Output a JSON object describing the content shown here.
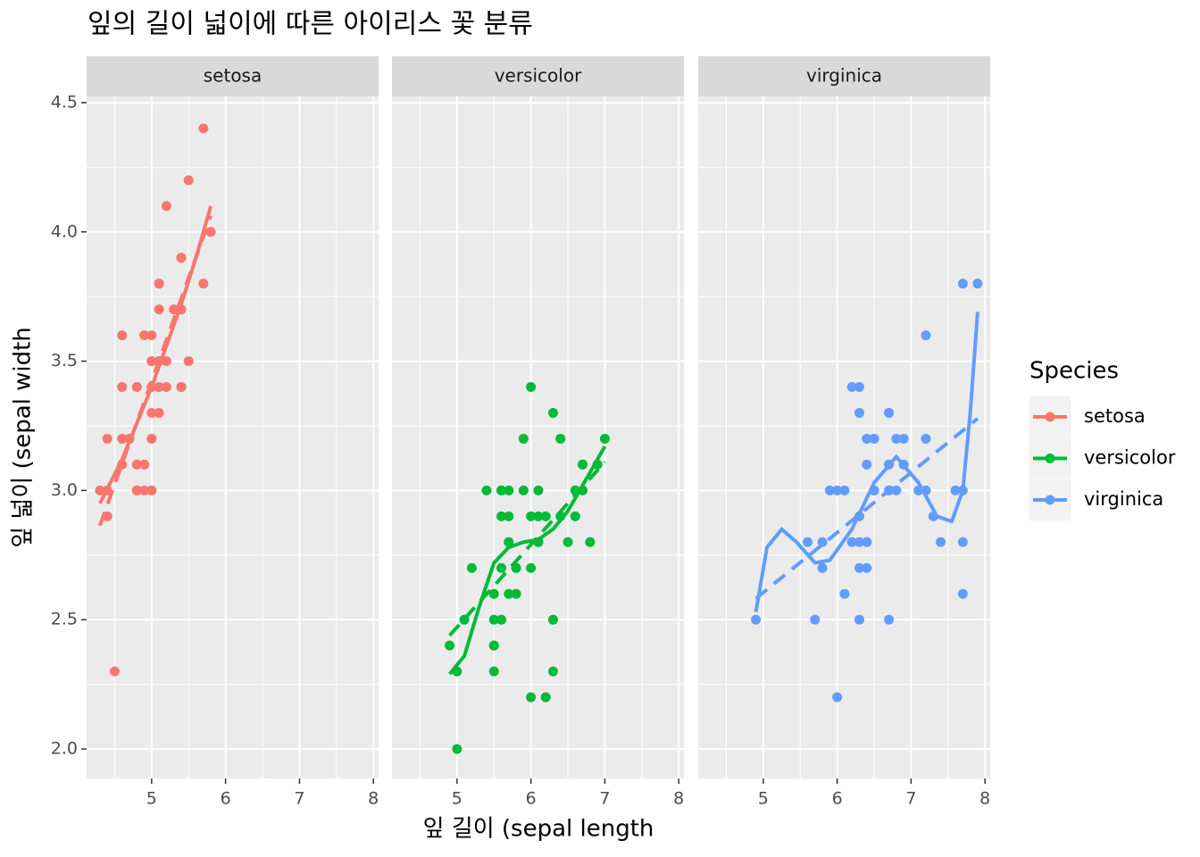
{
  "chart_data": {
    "type": "scatter",
    "title": "잎의 길이 넓이에 따른 아이리스 꽃 분류",
    "x_label": "잎 길이 (sepal length",
    "y_label": "잎 넓이 (sepal width",
    "legend_title": "Species",
    "xlim": [
      4.12,
      8.07
    ],
    "ylim": [
      1.886,
      4.524
    ],
    "xticks": [
      5,
      6,
      7,
      8
    ],
    "yticks": [
      {
        "value": 2,
        "label": "2.0"
      },
      {
        "value": 2.5,
        "label": "2.5"
      },
      {
        "value": 3,
        "label": "3.0"
      },
      {
        "value": 3.5,
        "label": "3.5"
      },
      {
        "value": 4,
        "label": "4.0"
      },
      {
        "value": 4.5,
        "label": "4.5"
      }
    ],
    "grid": true,
    "series": [
      {
        "name": "setosa",
        "color": "#f8766d",
        "x": [
          5.1,
          4.9,
          4.7,
          4.6,
          5.0,
          5.4,
          4.6,
          5.0,
          4.4,
          4.9,
          5.4,
          4.8,
          4.8,
          4.3,
          5.8,
          5.7,
          5.4,
          5.1,
          5.7,
          5.1,
          5.4,
          5.1,
          4.6,
          5.1,
          4.8,
          5.0,
          5.0,
          5.2,
          5.2,
          4.7,
          4.8,
          5.4,
          5.2,
          5.5,
          4.9,
          5.0,
          5.5,
          4.9,
          4.4,
          5.1,
          5.0,
          4.5,
          4.4,
          5.0,
          5.1,
          4.8,
          5.1,
          4.6,
          5.3,
          5.0
        ],
        "values": [
          3.5,
          3.0,
          3.2,
          3.1,
          3.6,
          3.9,
          3.4,
          3.4,
          2.9,
          3.1,
          3.7,
          3.4,
          3.0,
          3.0,
          4.0,
          4.4,
          3.9,
          3.5,
          3.8,
          3.8,
          3.4,
          3.7,
          3.6,
          3.3,
          3.4,
          3.0,
          3.4,
          3.5,
          3.4,
          3.2,
          3.1,
          3.4,
          4.1,
          4.2,
          3.1,
          3.2,
          3.5,
          3.6,
          3.0,
          3.4,
          3.5,
          2.3,
          3.2,
          3.5,
          3.8,
          3.0,
          3.8,
          3.2,
          3.7,
          3.3
        ],
        "smooth_x": [
          4.3,
          4.6,
          5.0,
          5.4,
          5.6,
          5.8
        ],
        "smooth_y": [
          2.95,
          3.12,
          3.4,
          3.72,
          3.9,
          4.1
        ],
        "fit_x": [
          4.3,
          5.8
        ],
        "fit_y": [
          2.864,
          4.062
        ]
      },
      {
        "name": "versicolor",
        "color": "#00ba38",
        "x": [
          7.0,
          6.4,
          6.9,
          5.5,
          6.5,
          5.7,
          6.3,
          4.9,
          6.6,
          5.2,
          5.0,
          5.9,
          6.0,
          6.1,
          5.6,
          6.7,
          5.6,
          5.8,
          6.2,
          5.6,
          5.9,
          6.1,
          6.3,
          6.1,
          6.4,
          6.6,
          6.8,
          6.7,
          6.0,
          5.7,
          5.5,
          5.5,
          5.8,
          6.0,
          5.4,
          6.0,
          6.7,
          6.3,
          5.6,
          5.5,
          5.5,
          6.1,
          5.8,
          5.0,
          5.6,
          5.7,
          5.7,
          6.2,
          5.1,
          5.7
        ],
        "values": [
          3.2,
          3.2,
          3.1,
          2.3,
          2.8,
          2.8,
          3.3,
          2.4,
          2.9,
          2.7,
          2.0,
          3.0,
          2.2,
          2.9,
          2.9,
          3.1,
          3.0,
          2.7,
          2.2,
          2.5,
          3.2,
          2.8,
          2.5,
          2.8,
          2.9,
          3.0,
          2.8,
          3.0,
          2.9,
          2.6,
          2.4,
          2.4,
          2.7,
          2.7,
          3.0,
          3.4,
          3.1,
          2.3,
          3.0,
          2.5,
          2.6,
          3.0,
          2.6,
          2.3,
          2.7,
          3.0,
          2.9,
          2.9,
          2.5,
          2.8
        ],
        "smooth_x": [
          4.9,
          5.1,
          5.3,
          5.5,
          5.7,
          5.9,
          6.1,
          6.3,
          6.5,
          6.7,
          7.0
        ],
        "smooth_y": [
          2.29,
          2.36,
          2.55,
          2.72,
          2.78,
          2.8,
          2.81,
          2.85,
          2.92,
          3.02,
          3.17
        ],
        "fit_x": [
          4.9,
          7.0
        ],
        "fit_y": [
          2.439,
          3.11
        ]
      },
      {
        "name": "virginica",
        "color": "#619cff",
        "x": [
          6.3,
          5.8,
          7.1,
          6.3,
          6.5,
          7.6,
          4.9,
          7.3,
          6.7,
          7.2,
          6.5,
          6.4,
          6.8,
          5.7,
          5.8,
          6.4,
          6.5,
          7.7,
          7.7,
          6.0,
          6.9,
          5.6,
          7.7,
          6.3,
          6.7,
          7.2,
          6.2,
          6.1,
          6.4,
          7.2,
          7.4,
          7.9,
          6.4,
          6.3,
          6.1,
          7.7,
          6.3,
          6.4,
          6.0,
          6.9,
          6.7,
          6.9,
          5.8,
          6.8,
          6.7,
          6.7,
          6.3,
          6.5,
          6.2,
          5.9
        ],
        "values": [
          3.3,
          2.7,
          3.0,
          2.9,
          3.0,
          3.0,
          2.5,
          2.9,
          2.5,
          3.6,
          3.2,
          2.7,
          3.0,
          2.5,
          2.8,
          3.2,
          3.0,
          3.8,
          2.6,
          2.2,
          3.2,
          2.8,
          2.8,
          2.7,
          3.3,
          3.2,
          2.8,
          3.0,
          2.8,
          3.0,
          2.8,
          3.8,
          2.8,
          2.8,
          2.6,
          3.0,
          3.4,
          3.1,
          3.0,
          3.1,
          3.1,
          3.1,
          2.7,
          3.2,
          3.3,
          3.0,
          2.5,
          3.0,
          3.4,
          3.0
        ],
        "smooth_x": [
          4.9,
          5.05,
          5.25,
          5.45,
          5.7,
          5.9,
          6.2,
          6.5,
          6.8,
          7.1,
          7.35,
          7.55,
          7.7,
          7.8,
          7.9
        ],
        "smooth_y": [
          2.53,
          2.78,
          2.85,
          2.8,
          2.72,
          2.73,
          2.85,
          3.03,
          3.13,
          3.03,
          2.9,
          2.88,
          3.0,
          3.3,
          3.69
        ],
        "fit_x": [
          4.9,
          7.9
        ],
        "fit_y": [
          2.582,
          3.278
        ]
      }
    ]
  }
}
